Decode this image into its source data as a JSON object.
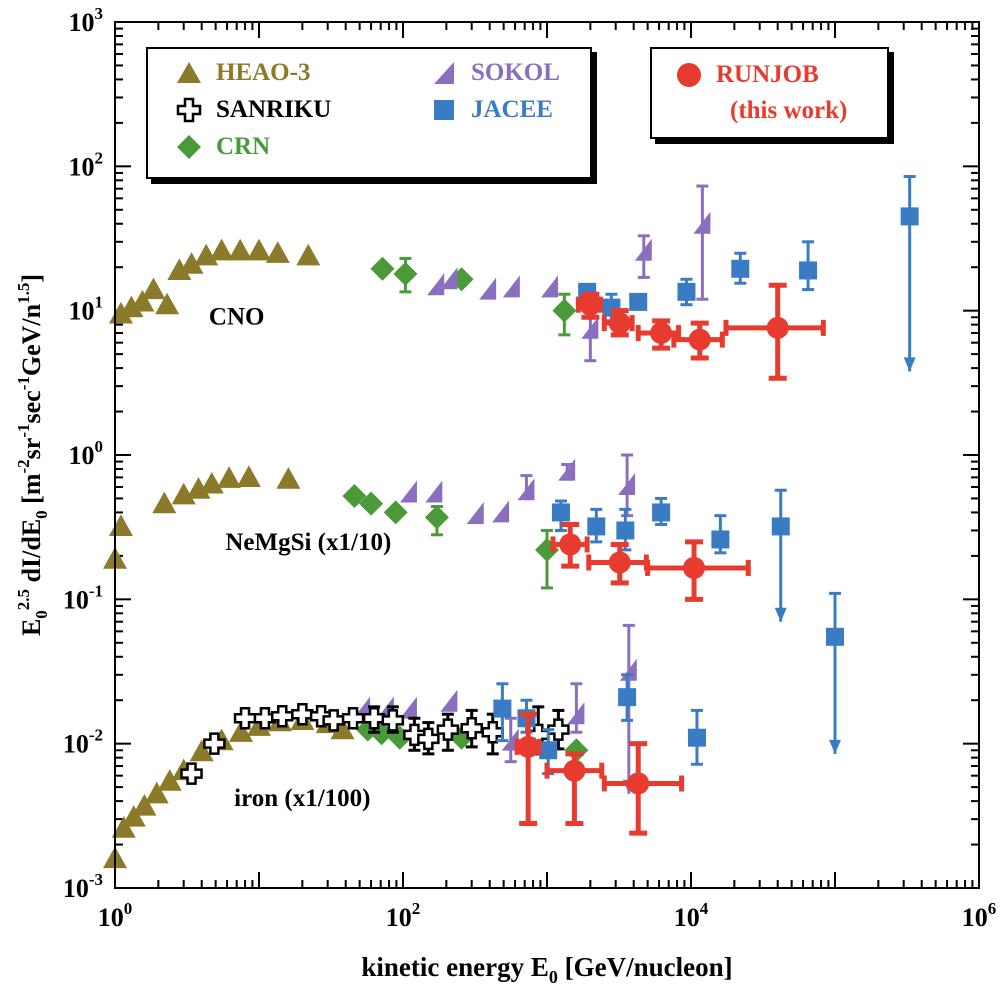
{
  "chart_data": {
    "type": "scatter",
    "x_scale": "log",
    "y_scale": "log",
    "xlim": [
      1,
      1000000
    ],
    "ylim": [
      0.001,
      1000
    ],
    "xlabel_parts": [
      "kinetic energy E",
      "0",
      " [GeV/nucleon]"
    ],
    "ylabel_parts": [
      "E",
      "0",
      "2.5",
      " dI/dE",
      "0",
      " [m",
      "-2",
      "sr",
      "-1",
      "sec",
      "-1",
      "GeV/n",
      "1.5",
      "]"
    ],
    "x_ticks": [
      {
        "value": 1,
        "base": "10",
        "exp": "0"
      },
      {
        "value": 100,
        "base": "10",
        "exp": "2"
      },
      {
        "value": 10000,
        "base": "10",
        "exp": "4"
      },
      {
        "value": 1000000,
        "base": "10",
        "exp": "6"
      }
    ],
    "y_ticks": [
      {
        "value": 0.001,
        "base": "10",
        "exp": "-3"
      },
      {
        "value": 0.01,
        "base": "10",
        "exp": "-2"
      },
      {
        "value": 0.1,
        "base": "10",
        "exp": "-1"
      },
      {
        "value": 1,
        "base": "10",
        "exp": "0"
      },
      {
        "value": 10,
        "base": "10",
        "exp": "1"
      },
      {
        "value": 100,
        "base": "10",
        "exp": "2"
      },
      {
        "value": 1000,
        "base": "10",
        "exp": "3"
      }
    ],
    "group_labels": [
      {
        "text": "CNO",
        "x": 7,
        "y": 8
      },
      {
        "text": "NeMgSi (x1/10)",
        "x": 22,
        "y": 0.22
      },
      {
        "text": "iron (x1/100)",
        "x": 20,
        "y": 0.0037
      }
    ],
    "series": [
      {
        "name": "HEAO-3",
        "marker": "triangle",
        "color": "#8a7a2a",
        "points": [
          {
            "x": 1.1,
            "y": 9.5
          },
          {
            "x": 1.3,
            "y": 10.5
          },
          {
            "x": 1.55,
            "y": 11.5
          },
          {
            "x": 1.85,
            "y": 14
          },
          {
            "x": 2.3,
            "y": 11
          },
          {
            "x": 2.8,
            "y": 19
          },
          {
            "x": 3.4,
            "y": 21
          },
          {
            "x": 4.3,
            "y": 24
          },
          {
            "x": 5.5,
            "y": 26
          },
          {
            "x": 7.4,
            "y": 26
          },
          {
            "x": 10,
            "y": 26
          },
          {
            "x": 13.5,
            "y": 25
          },
          {
            "x": 22,
            "y": 24
          },
          {
            "x": 1.0,
            "y": 0.19
          },
          {
            "x": 1.1,
            "y": 0.32
          },
          {
            "x": 2.2,
            "y": 0.46
          },
          {
            "x": 3.0,
            "y": 0.53
          },
          {
            "x": 3.8,
            "y": 0.58
          },
          {
            "x": 4.7,
            "y": 0.63
          },
          {
            "x": 6.2,
            "y": 0.69
          },
          {
            "x": 8.5,
            "y": 0.7
          },
          {
            "x": 16,
            "y": 0.68
          },
          {
            "x": 1.0,
            "y": 0.0016
          },
          {
            "x": 1.15,
            "y": 0.0026
          },
          {
            "x": 1.35,
            "y": 0.0031
          },
          {
            "x": 1.6,
            "y": 0.0037
          },
          {
            "x": 1.95,
            "y": 0.0045
          },
          {
            "x": 2.4,
            "y": 0.0055
          },
          {
            "x": 3.0,
            "y": 0.0065
          },
          {
            "x": 4.0,
            "y": 0.0088
          },
          {
            "x": 5.5,
            "y": 0.0105
          },
          {
            "x": 7.5,
            "y": 0.012
          },
          {
            "x": 10,
            "y": 0.0132
          },
          {
            "x": 14,
            "y": 0.0142
          },
          {
            "x": 20,
            "y": 0.0145
          },
          {
            "x": 30,
            "y": 0.0138
          },
          {
            "x": 38,
            "y": 0.0125
          }
        ]
      },
      {
        "name": "SANRIKU",
        "marker": "cross",
        "color": "#000000",
        "points": [
          {
            "x": 3.4,
            "y": 0.0062
          },
          {
            "x": 4.9,
            "y": 0.01
          },
          {
            "x": 8,
            "y": 0.015
          },
          {
            "x": 11,
            "y": 0.015
          },
          {
            "x": 14.5,
            "y": 0.0155
          },
          {
            "x": 20,
            "y": 0.016
          },
          {
            "x": 27,
            "y": 0.0155
          },
          {
            "x": 33,
            "y": 0.0145
          },
          {
            "x": 45,
            "y": 0.015
          },
          {
            "x": 63,
            "y": 0.015,
            "err_lo": 0.012,
            "err_hi": 0.018
          },
          {
            "x": 85,
            "y": 0.0145,
            "err_lo": 0.012,
            "err_hi": 0.018
          },
          {
            "x": 120,
            "y": 0.0115,
            "err_lo": 0.009,
            "err_hi": 0.015
          },
          {
            "x": 150,
            "y": 0.0108,
            "err_lo": 0.0085,
            "err_hi": 0.014
          },
          {
            "x": 205,
            "y": 0.0125,
            "err_lo": 0.009,
            "err_hi": 0.016
          },
          {
            "x": 300,
            "y": 0.0128,
            "err_lo": 0.0095,
            "err_hi": 0.017
          },
          {
            "x": 420,
            "y": 0.012,
            "err_lo": 0.0085,
            "err_hi": 0.016
          },
          {
            "x": 870,
            "y": 0.0115,
            "err_lo": 0.0085,
            "err_hi": 0.018
          },
          {
            "x": 1200,
            "y": 0.0125,
            "err_lo": 0.0092,
            "err_hi": 0.017
          }
        ]
      },
      {
        "name": "CRN",
        "marker": "diamond",
        "color": "#4a9a3a",
        "points": [
          {
            "x": 72,
            "y": 19.5
          },
          {
            "x": 104,
            "y": 18,
            "err_lo": 13.5,
            "err_hi": 23
          },
          {
            "x": 255,
            "y": 16.5
          },
          {
            "x": 1320,
            "y": 10,
            "err_lo": 6.8,
            "err_hi": 13
          },
          {
            "x": 46,
            "y": 0.52
          },
          {
            "x": 60,
            "y": 0.46
          },
          {
            "x": 89,
            "y": 0.4
          },
          {
            "x": 172,
            "y": 0.37,
            "err_lo": 0.28,
            "err_hi": 0.44
          },
          {
            "x": 1000,
            "y": 0.22,
            "err_lo": 0.12,
            "err_hi": 0.3
          },
          {
            "x": 57,
            "y": 0.0125
          },
          {
            "x": 71,
            "y": 0.0118
          },
          {
            "x": 95,
            "y": 0.011
          },
          {
            "x": 255,
            "y": 0.011
          },
          {
            "x": 1600,
            "y": 0.009
          }
        ]
      },
      {
        "name": "SOKOL",
        "marker": "wedge",
        "color": "#8a6fbf",
        "points": [
          {
            "x": 170,
            "y": 15
          },
          {
            "x": 210,
            "y": 16.5
          },
          {
            "x": 390,
            "y": 14
          },
          {
            "x": 570,
            "y": 14.5
          },
          {
            "x": 1050,
            "y": 14.5
          },
          {
            "x": 2000,
            "y": 7.5,
            "err_lo": 4.5,
            "err_hi": 10
          },
          {
            "x": 4700,
            "y": 26,
            "err_lo": 17,
            "err_hi": 33
          },
          {
            "x": 12000,
            "y": 40,
            "err_lo": 12,
            "err_hi": 73
          },
          {
            "x": 110,
            "y": 0.55
          },
          {
            "x": 165,
            "y": 0.55
          },
          {
            "x": 320,
            "y": 0.39
          },
          {
            "x": 480,
            "y": 0.4
          },
          {
            "x": 720,
            "y": 0.57,
            "err_lo": 0.5,
            "err_hi": 0.72
          },
          {
            "x": 1380,
            "y": 0.78,
            "err_lo": 0.68,
            "err_hi": 0.86
          },
          {
            "x": 3600,
            "y": 0.62,
            "err_lo": 0.38,
            "err_hi": 1.0
          },
          {
            "x": 52,
            "y": 0.0175
          },
          {
            "x": 76,
            "y": 0.0175
          },
          {
            "x": 110,
            "y": 0.0175
          },
          {
            "x": 210,
            "y": 0.0195
          },
          {
            "x": 560,
            "y": 0.0105,
            "err_lo": 0.0075,
            "err_hi": 0.015
          },
          {
            "x": 1600,
            "y": 0.016,
            "err_lo": 0.012,
            "err_hi": 0.026
          },
          {
            "x": 3700,
            "y": 0.032,
            "err_lo": 0.0045,
            "err_hi": 0.066,
            "arrow": true
          }
        ]
      },
      {
        "name": "JACEE",
        "marker": "square",
        "color": "#3a7cc4",
        "points": [
          {
            "x": 1900,
            "y": 13.5
          },
          {
            "x": 2800,
            "y": 10.5,
            "err_lo": 8.5,
            "err_hi": 13
          },
          {
            "x": 4300,
            "y": 11.5
          },
          {
            "x": 9300,
            "y": 13.5,
            "err_lo": 11,
            "err_hi": 16.5
          },
          {
            "x": 22000,
            "y": 19.5,
            "err_lo": 15.5,
            "err_hi": 25
          },
          {
            "x": 65000,
            "y": 19,
            "err_lo": 14,
            "err_hi": 30
          },
          {
            "x": 330000,
            "y": 45,
            "err_lo": 3.8,
            "err_hi": 85,
            "arrow": true
          },
          {
            "x": 1250,
            "y": 0.4,
            "err_lo": 0.3,
            "err_hi": 0.48
          },
          {
            "x": 2200,
            "y": 0.32,
            "err_lo": 0.25,
            "err_hi": 0.42
          },
          {
            "x": 3500,
            "y": 0.3,
            "err_lo": 0.22,
            "err_hi": 0.42
          },
          {
            "x": 6200,
            "y": 0.4,
            "err_lo": 0.33,
            "err_hi": 0.5
          },
          {
            "x": 16000,
            "y": 0.26,
            "err_lo": 0.21,
            "err_hi": 0.38
          },
          {
            "x": 42000,
            "y": 0.32,
            "err_lo": 0.07,
            "err_hi": 0.57,
            "arrow": true
          },
          {
            "x": 100000,
            "y": 0.055,
            "err_lo": 0.0085,
            "err_hi": 0.11,
            "arrow": true
          },
          {
            "x": 490,
            "y": 0.0175,
            "err_lo": 0.0105,
            "err_hi": 0.026
          },
          {
            "x": 720,
            "y": 0.015,
            "err_lo": 0.012,
            "err_hi": 0.02
          },
          {
            "x": 1020,
            "y": 0.009,
            "err_lo": 0.0062,
            "err_hi": 0.0125
          },
          {
            "x": 3600,
            "y": 0.021,
            "err_lo": 0.0145,
            "err_hi": 0.03
          },
          {
            "x": 11000,
            "y": 0.011,
            "err_lo": 0.0072,
            "err_hi": 0.017
          }
        ]
      },
      {
        "name": "RUNJOB",
        "name_line2": "(this work)",
        "marker": "circle",
        "color": "#e63b2e",
        "points": [
          {
            "x": 2000,
            "y": 11,
            "err_lo": 9,
            "err_hi": 13,
            "x_lo": 1650,
            "x_hi": 2350
          },
          {
            "x": 3200,
            "y": 8.2,
            "err_lo": 6.8,
            "err_hi": 10,
            "x_lo": 2500,
            "x_hi": 3900
          },
          {
            "x": 6200,
            "y": 7,
            "err_lo": 5.5,
            "err_hi": 8.5,
            "x_lo": 4300,
            "x_hi": 8200
          },
          {
            "x": 11500,
            "y": 6.3,
            "err_lo": 4.7,
            "err_hi": 8.2,
            "x_lo": 7600,
            "x_hi": 16500
          },
          {
            "x": 40000,
            "y": 7.6,
            "err_lo": 3.4,
            "err_hi": 15,
            "x_lo": 17500,
            "x_hi": 83000
          },
          {
            "x": 1450,
            "y": 0.24,
            "err_lo": 0.17,
            "err_hi": 0.33,
            "x_lo": 1100,
            "x_hi": 1900
          },
          {
            "x": 3200,
            "y": 0.18,
            "err_lo": 0.13,
            "err_hi": 0.24,
            "x_lo": 1950,
            "x_hi": 4900
          },
          {
            "x": 10500,
            "y": 0.165,
            "err_lo": 0.1,
            "err_hi": 0.25,
            "x_lo": 5000,
            "x_hi": 25000
          },
          {
            "x": 740,
            "y": 0.0095,
            "err_lo": 0.0028,
            "err_hi": 0.016,
            "x_lo": 620,
            "x_hi": 880
          },
          {
            "x": 1550,
            "y": 0.0065,
            "err_lo": 0.0028,
            "err_hi": 0.0085,
            "x_lo": 1000,
            "x_hi": 2400
          },
          {
            "x": 4300,
            "y": 0.0053,
            "err_lo": 0.0024,
            "err_hi": 0.01,
            "x_lo": 2500,
            "x_hi": 8600
          }
        ]
      }
    ],
    "legend": {
      "placement": "top",
      "box1": [
        "HEAO-3",
        "SANRIKU",
        "CRN",
        "SOKOL",
        "JACEE"
      ],
      "box2": [
        "RUNJOB"
      ]
    }
  },
  "legend_labels": {
    "heao": "HEAO-3",
    "sanriku": "SANRIKU",
    "crn": "CRN",
    "sokol": "SOKOL",
    "jacee": "JACEE",
    "runjob_1": "RUNJOB",
    "runjob_2": "(this work)"
  },
  "colors": {
    "heao": "#8a7a2a",
    "sanriku": "#000000",
    "crn": "#4a9a3a",
    "sokol": "#8a6fbf",
    "jacee": "#3a7cc4",
    "runjob": "#e63b2e"
  }
}
